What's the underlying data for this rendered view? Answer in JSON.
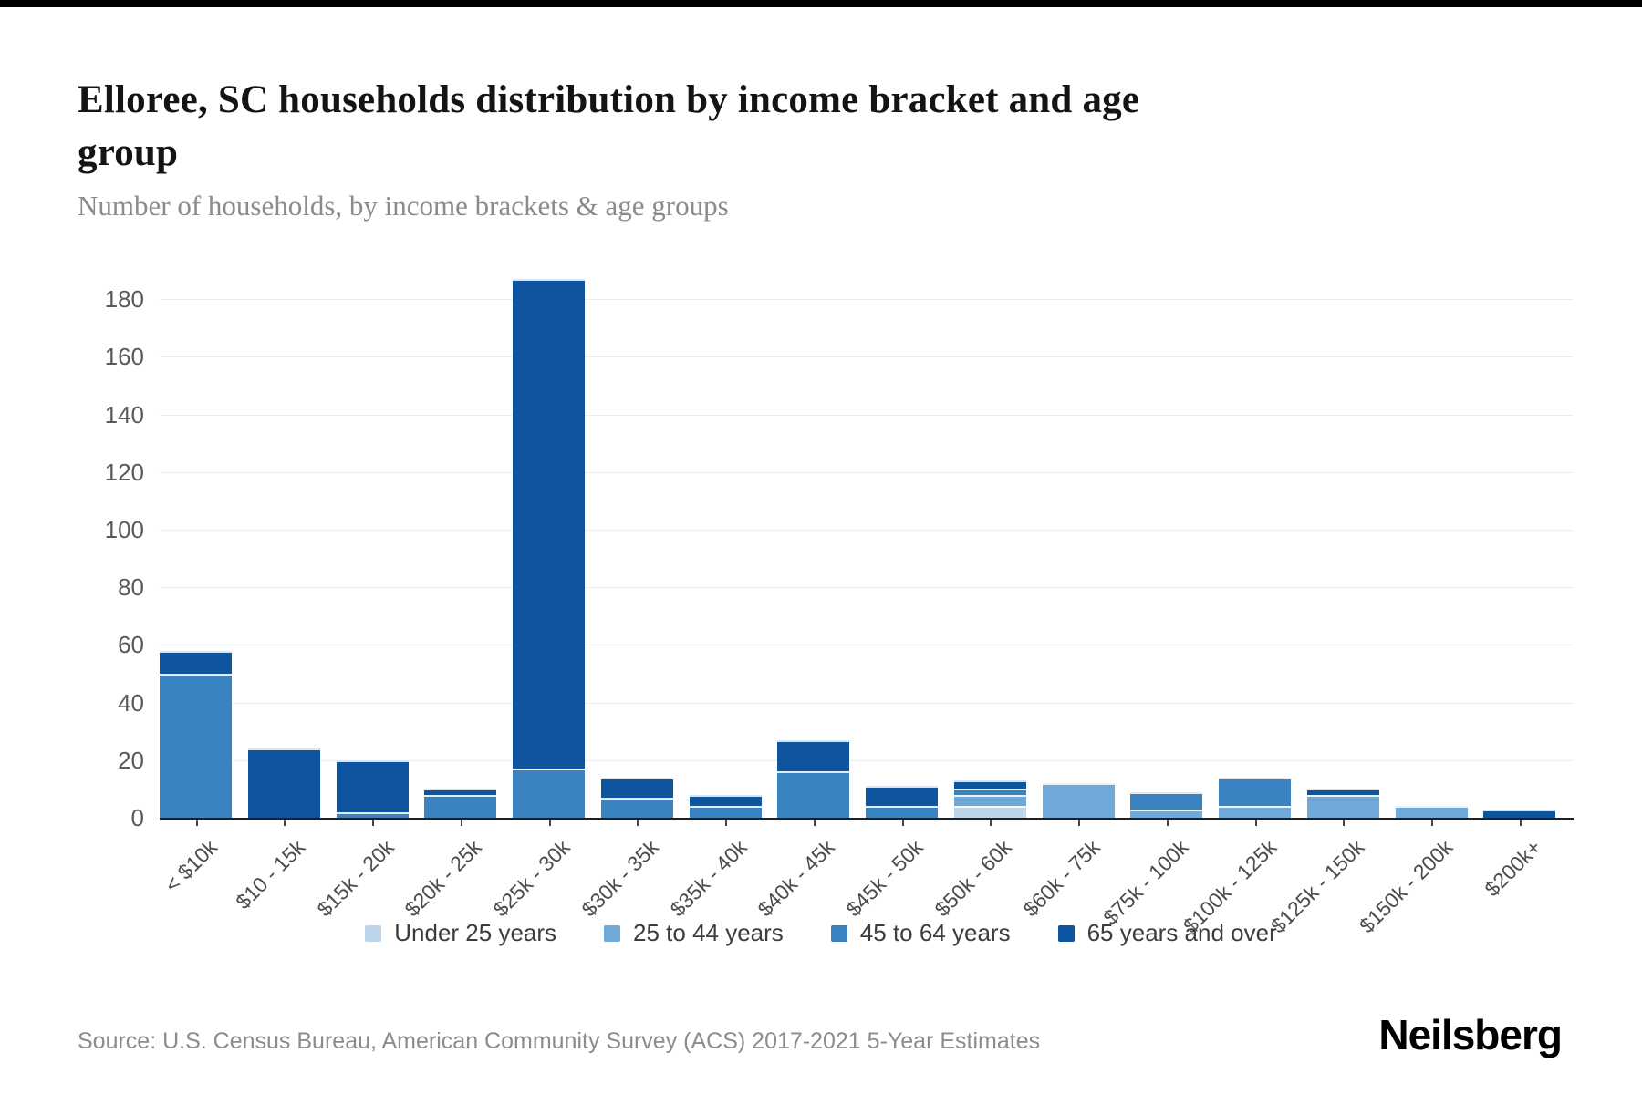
{
  "page": {
    "title": "Elloree, SC households distribution by income bracket and age group",
    "subtitle": "Number of households, by income brackets & age groups",
    "source": "Source: U.S. Census Bureau, American Community Survey (ACS) 2017-2021 5-Year Estimates",
    "brand": "Neilsberg"
  },
  "colors": {
    "under_25": "#bcd5ea",
    "age_25_44": "#70a9d8",
    "age_45_64": "#3a83c1",
    "age_65_over": "#0e549e",
    "gridline": "#ededed",
    "axis_line": "#1f1f1f",
    "y_label": "#5a5a5a",
    "x_label": "#4c4c4c"
  },
  "chart_data": {
    "type": "bar",
    "stacked": true,
    "title": "Elloree, SC households distribution by income bracket and age group",
    "subtitle": "Number of households, by income brackets & age groups",
    "xlabel": "",
    "ylabel": "",
    "ylim": [
      0,
      190
    ],
    "yticks": [
      0,
      20,
      40,
      60,
      80,
      100,
      120,
      140,
      160,
      180
    ],
    "grid": true,
    "legend_position": "bottom",
    "categories": [
      "< $10k",
      "$10 - 15k",
      "$15k - 20k",
      "$20k - 25k",
      "$25k - 30k",
      "$30k - 35k",
      "$35k - 40k",
      "$40k - 45k",
      "$45k - 50k",
      "$50k - 60k",
      "$60k - 75k",
      "$75k - 100k",
      "$100k - 125k",
      "$125k - 150k",
      "$150k - 200k",
      "$200k+"
    ],
    "series": [
      {
        "name": "Under 25 years",
        "color": "#bcd5ea",
        "values": [
          0,
          0,
          0,
          0,
          0,
          0,
          0,
          0,
          0,
          4,
          0,
          0,
          0,
          0,
          0,
          0
        ]
      },
      {
        "name": "25 to 44 years",
        "color": "#70a9d8",
        "values": [
          0,
          0,
          0,
          0,
          0,
          0,
          0,
          0,
          0,
          4,
          12,
          3,
          4,
          8,
          4,
          0
        ]
      },
      {
        "name": "45 to 64 years",
        "color": "#3a83c1",
        "values": [
          50,
          0,
          2,
          8,
          17,
          7,
          4,
          16,
          4,
          2,
          0,
          6,
          10,
          0,
          0,
          0
        ]
      },
      {
        "name": "65 years and over",
        "color": "#0e549e",
        "values": [
          8,
          24,
          18,
          2,
          170,
          7,
          4,
          11,
          7,
          3,
          0,
          0,
          0,
          2,
          0,
          3
        ]
      }
    ],
    "totals": [
      58,
      24,
      20,
      10,
      187,
      14,
      8,
      27,
      11,
      13,
      12,
      9,
      14,
      10,
      4,
      3
    ]
  }
}
